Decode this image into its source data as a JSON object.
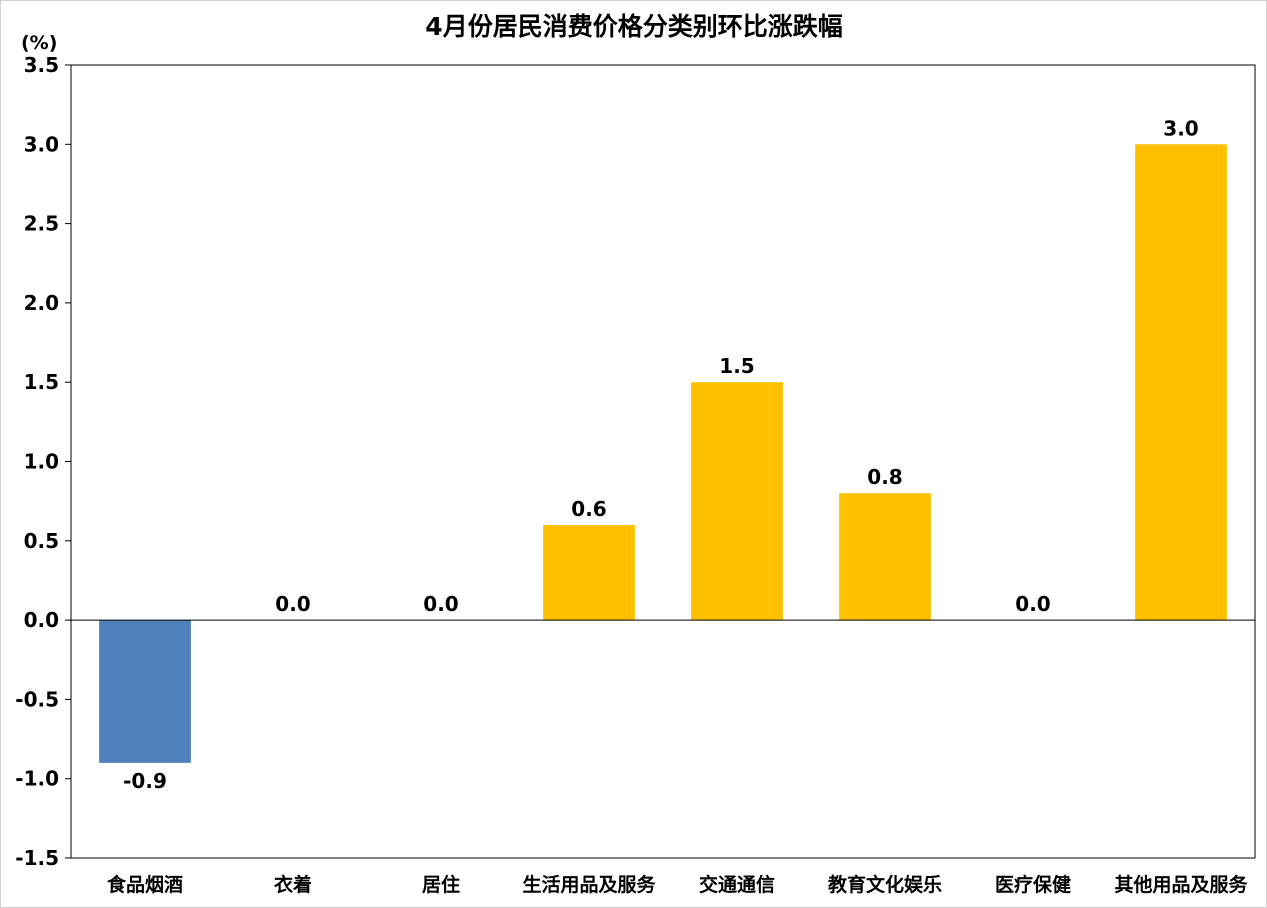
{
  "chart_data": {
    "type": "bar",
    "title": "4月份居民消费价格分类别环比涨跌幅",
    "ylabel": "(%)",
    "xlabel": "",
    "ylim": [
      -1.5,
      3.5
    ],
    "yticks": [
      "3.5",
      "3.0",
      "2.5",
      "2.0",
      "1.5",
      "1.0",
      "0.5",
      "0.0",
      "-0.5",
      "-1.0",
      "-1.5"
    ],
    "categories": [
      "食品烟酒",
      "衣着",
      "居住",
      "生活用品及服务",
      "交通通信",
      "教育文化娱乐",
      "医疗保健",
      "其他用品及服务"
    ],
    "values": [
      -0.9,
      0.0,
      0.0,
      0.6,
      1.5,
      0.8,
      0.0,
      3.0
    ],
    "labels": [
      "-0.9",
      "0.0",
      "0.0",
      "0.6",
      "1.5",
      "0.8",
      "0.0",
      "3.0"
    ],
    "colors": {
      "positive": "#FFC000",
      "negative": "#4F81BD"
    },
    "grid": false,
    "legend": false
  }
}
